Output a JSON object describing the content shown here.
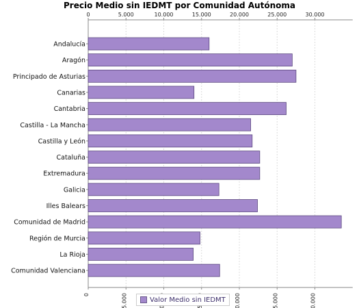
{
  "chart_data": {
    "type": "bar",
    "orientation": "horizontal",
    "title": "Precio Medio sin IEDMT por Comunidad Autónoma",
    "categories": [
      "Andalucía",
      "Aragón",
      "Principado de Asturias",
      "Canarias",
      "Cantabria",
      "Castilla - La Mancha",
      "Castilla y León",
      "Cataluña",
      "Extremadura",
      "Galicia",
      "Illes Balears",
      "Comunidad de Madrid",
      "Región de Murcia",
      "La Rioja",
      "Comunidad Valenciana"
    ],
    "series": [
      {
        "name": "Valor Medio sin IEDMT",
        "values": [
          16000,
          27000,
          27500,
          14000,
          26200,
          21500,
          21700,
          22700,
          22700,
          17300,
          22400,
          33500,
          14800,
          13900,
          17400
        ],
        "color": "#a388cc"
      }
    ],
    "xlim": [
      0,
      35000
    ],
    "x_ticks": [
      0,
      5000,
      10000,
      15000,
      20000,
      25000,
      30000
    ],
    "x_tick_labels": [
      "0",
      "5.000",
      "10.000",
      "15.000",
      "20.000",
      "25.000",
      "30.000"
    ],
    "x_axis_position": "top",
    "grid": true,
    "legend_position": "bottom"
  }
}
